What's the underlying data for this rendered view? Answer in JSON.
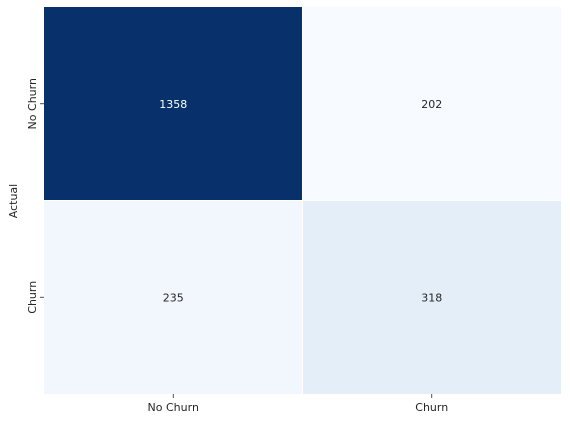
{
  "chart_data": {
    "type": "heatmap",
    "title": "",
    "ylabel": "Actual",
    "xlabel": "",
    "x_categories": [
      "No Churn",
      "Churn"
    ],
    "y_categories": [
      "No Churn",
      "Churn"
    ],
    "values": [
      [
        1358,
        202
      ],
      [
        235,
        318
      ]
    ],
    "colormap": "Blues",
    "colorbar": false,
    "colors": {
      "high": "#08306b",
      "low": "#f7fbff",
      "text_dark": "#262626",
      "text_light": "#ffffff"
    }
  }
}
